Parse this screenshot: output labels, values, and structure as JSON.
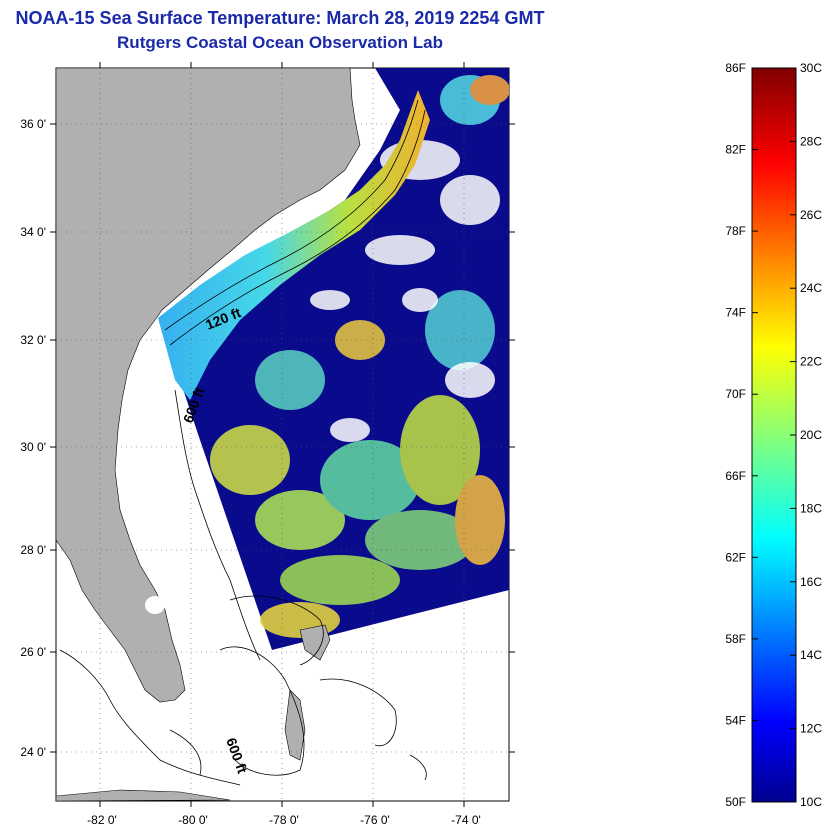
{
  "header": {
    "title": "NOAA-15 Sea Surface Temperature:  March 28, 2019 2254 GMT",
    "subtitle": "Rutgers Coastal Ocean Observation Lab"
  },
  "map": {
    "lat_ticks": [
      "36 0'",
      "34 0'",
      "32 0'",
      "30 0'",
      "28 0'",
      "26 0'",
      "24 0'"
    ],
    "lon_ticks": [
      "-82 0'",
      "-80 0'",
      "-78 0'",
      "-76 0'",
      "-74 0'"
    ],
    "contour_labels": [
      "120 ft",
      "600 ft",
      "600 ft"
    ],
    "land_color": "#b0b0b0",
    "cold_water_color": "#0a0a8c",
    "cloud_color": "#ffffff"
  },
  "colorbar": {
    "fahrenheit_labels": [
      "86F",
      "82F",
      "78F",
      "74F",
      "70F",
      "66F",
      "62F",
      "58F",
      "54F",
      "50F"
    ],
    "celsius_labels": [
      "30C",
      "28C",
      "26C",
      "24C",
      "22C",
      "20C",
      "18C",
      "16C",
      "14C",
      "12C",
      "10C"
    ],
    "range_f": [
      50,
      86
    ],
    "range_c": [
      10,
      30
    ],
    "colormap": "jet"
  }
}
